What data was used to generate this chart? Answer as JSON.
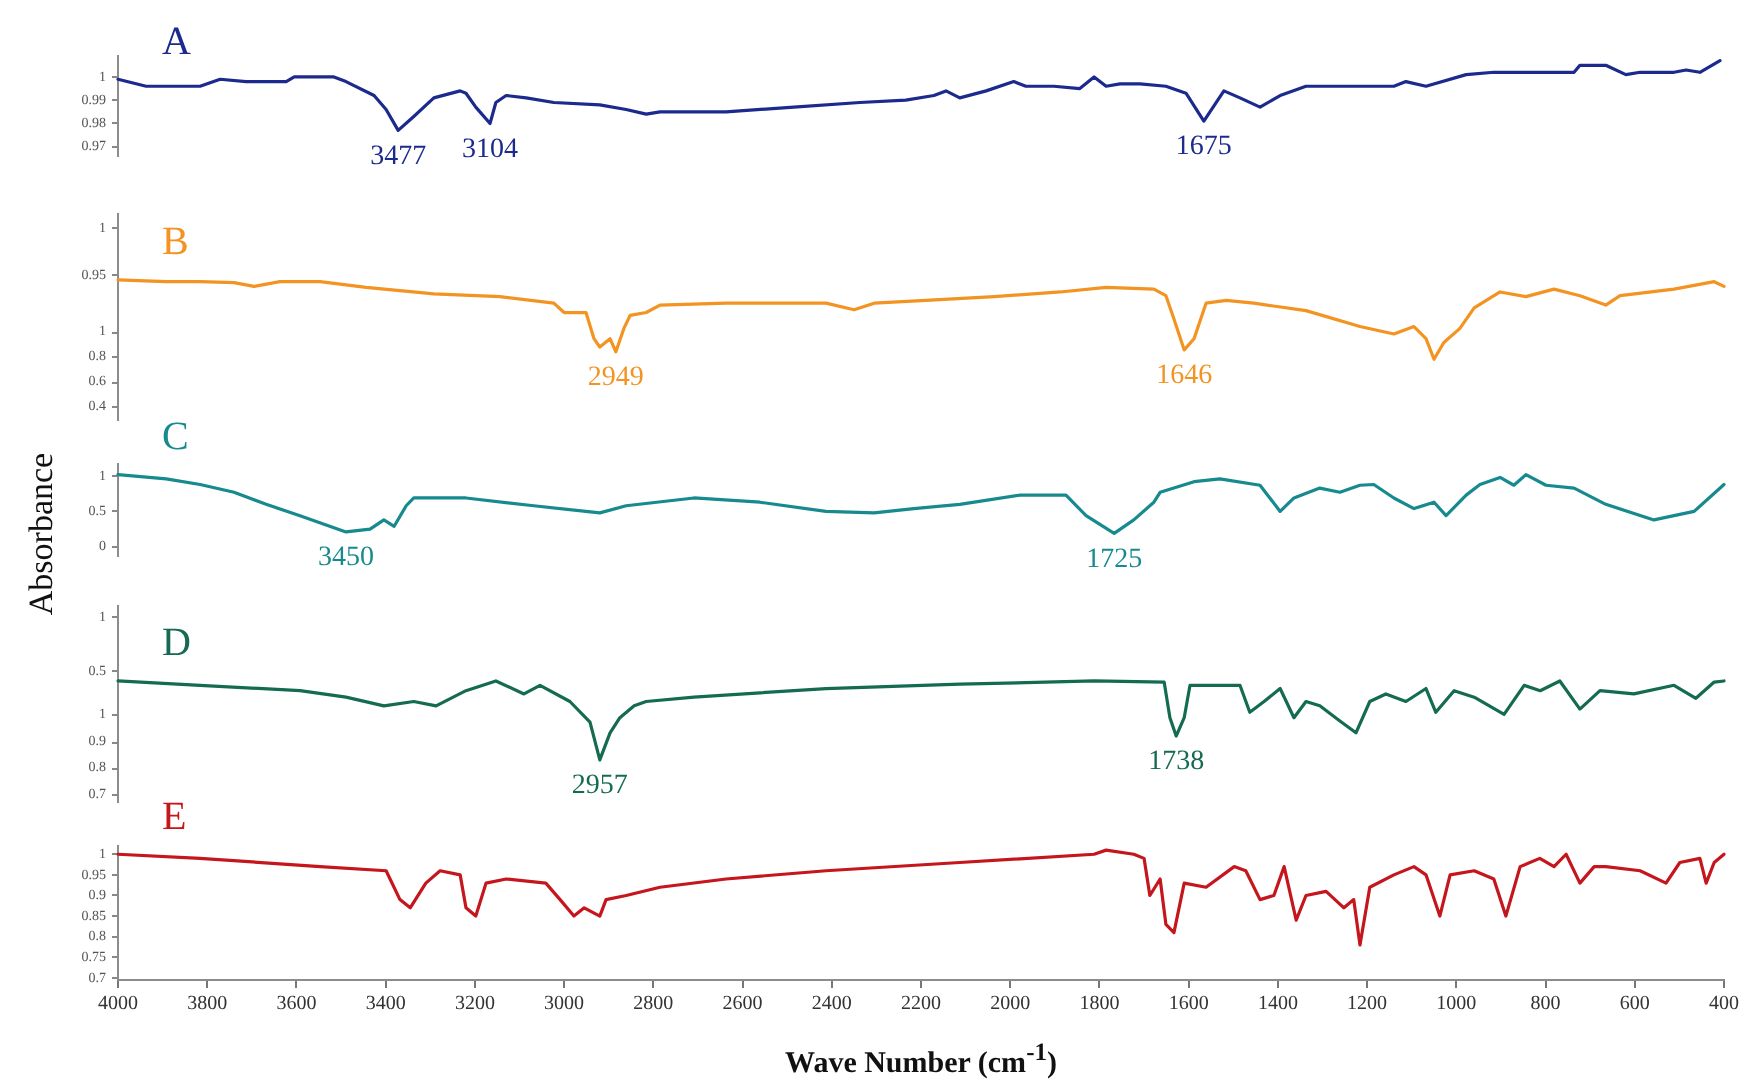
{
  "chart_data": [
    {
      "type": "line",
      "series": [
        {
          "name": "A",
          "color": "#1b2a8c",
          "x": [
            4000,
            3937,
            3874,
            3816,
            3771,
            3713,
            3623,
            3605,
            3516,
            3489,
            3426,
            3399,
            3372,
            3337,
            3292,
            3233,
            3220,
            3198,
            3166,
            3153,
            3130,
            3085,
            3023,
            2920,
            2861,
            2816,
            2785,
            2637,
            2485,
            2337,
            2234,
            2171,
            2144,
            2113,
            2054,
            1992,
            1965,
            1902,
            1844,
            1812,
            1785,
            1754,
            1709,
            1651,
            1606,
            1566,
            1521,
            1485,
            1440,
            1395,
            1337,
            1140,
            1113,
            1068,
            978,
            916,
            736,
            723,
            665,
            620,
            588,
            512,
            485,
            454,
            409
          ],
          "values": [
            0.999,
            0.996,
            0.996,
            0.996,
            0.999,
            0.998,
            0.998,
            1,
            1,
            0.998,
            0.992,
            0.986,
            0.977,
            0.983,
            0.991,
            0.994,
            0.993,
            0.987,
            0.98,
            0.989,
            0.992,
            0.991,
            0.989,
            0.988,
            0.986,
            0.984,
            0.985,
            0.985,
            0.987,
            0.989,
            0.99,
            0.992,
            0.994,
            0.991,
            0.994,
            0.998,
            0.996,
            0.996,
            0.995,
            1,
            0.996,
            0.997,
            0.997,
            0.996,
            0.993,
            0.981,
            0.994,
            0.991,
            0.987,
            0.992,
            0.996,
            0.996,
            0.998,
            0.996,
            1.001,
            1.002,
            1.002,
            1.005,
            1.005,
            1.001,
            1.002,
            1.002,
            1.003,
            1.002,
            1.007
          ]
        }
      ],
      "xlim": [
        4000,
        400
      ],
      "ylim": [
        0.966,
        1.009
      ],
      "yticks": [
        0.97,
        0.98,
        0.99,
        1
      ],
      "tick_labels": "y",
      "annotations": [
        {
          "text": "3477",
          "x": 3372,
          "y": 0.977
        },
        {
          "text": "3104",
          "x": 3166,
          "y": 0.98
        },
        {
          "text": "1675",
          "x": 1566,
          "y": 0.981
        }
      ]
    },
    {
      "type": "line",
      "series": [
        {
          "name": "B",
          "color": "#f39321",
          "x": [
            4000,
            3892,
            3816,
            3740,
            3695,
            3637,
            3547,
            3444,
            3292,
            3144,
            3023,
            3000,
            2951,
            2933,
            2920,
            2897,
            2884,
            2866,
            2852,
            2816,
            2785,
            2637,
            2413,
            2350,
            2305,
            2189,
            2036,
            1888,
            1785,
            1678,
            1651,
            1633,
            1610,
            1588,
            1561,
            1516,
            1454,
            1337,
            1216,
            1140,
            1095,
            1068,
            1050,
            1028,
            992,
            960,
            902,
            844,
            781,
            723,
            665,
            633,
            512,
            422,
            400
          ],
          "values": [
            0.945,
            0.943,
            0.943,
            0.942,
            0.938,
            0.943,
            0.943,
            0.937,
            0.93,
            0.927,
            0.92,
            0.91,
            0.91,
            0.882,
            0.873,
            0.882,
            0.868,
            0.893,
            0.907,
            0.91,
            0.918,
            0.92,
            0.92,
            0.913,
            0.92,
            0.923,
            0.927,
            0.932,
            0.937,
            0.935,
            0.928,
            0.903,
            0.87,
            0.882,
            0.92,
            0.923,
            0.92,
            0.912,
            0.895,
            0.887,
            0.895,
            0.882,
            0.86,
            0.878,
            0.893,
            0.915,
            0.932,
            0.927,
            0.935,
            0.928,
            0.918,
            0.928,
            0.935,
            0.943,
            0.938
          ]
        }
      ],
      "xlim": [
        4000,
        400
      ],
      "ylim": [
        0.795,
        1.015
      ],
      "yticks": [
        0.95,
        1
      ],
      "y2lim": [
        0.29,
        1.94
      ],
      "y2ticks": [
        0.4,
        0.6,
        0.8,
        1
      ],
      "tick_labels": "y",
      "annotations": [
        {
          "text": "2949",
          "x": 2884,
          "y": 0.868
        },
        {
          "text": "1646",
          "x": 1610,
          "y": 0.87
        }
      ]
    },
    {
      "type": "line",
      "series": [
        {
          "name": "C",
          "color": "#168a8e",
          "x": [
            4000,
            3892,
            3816,
            3740,
            3668,
            3592,
            3489,
            3435,
            3404,
            3381,
            3354,
            3337,
            3220,
            3068,
            2920,
            2861,
            2709,
            2561,
            2413,
            2305,
            2216,
            2113,
            1978,
            1875,
            1830,
            1767,
            1723,
            1678,
            1664,
            1588,
            1530,
            1440,
            1395,
            1364,
            1306,
            1261,
            1216,
            1185,
            1140,
            1095,
            1050,
            1023,
            978,
            947,
            902,
            871,
            844,
            799,
            736,
            665,
            557,
            467,
            400
          ],
          "values": [
            1.02,
            0.96,
            0.88,
            0.77,
            0.6,
            0.44,
            0.21,
            0.25,
            0.38,
            0.29,
            0.58,
            0.69,
            0.69,
            0.58,
            0.48,
            0.58,
            0.69,
            0.63,
            0.5,
            0.48,
            0.54,
            0.6,
            0.73,
            0.73,
            0.44,
            0.19,
            0.38,
            0.63,
            0.77,
            0.92,
            0.96,
            0.87,
            0.5,
            0.69,
            0.83,
            0.77,
            0.87,
            0.88,
            0.69,
            0.54,
            0.63,
            0.44,
            0.73,
            0.88,
            0.98,
            0.87,
            1.02,
            0.87,
            0.83,
            0.6,
            0.38,
            0.5,
            0.88
          ]
        }
      ],
      "xlim": [
        4000,
        400
      ],
      "ylim": [
        -0.13,
        1.17
      ],
      "yticks": [
        0,
        0.5,
        1
      ],
      "tick_labels": "y",
      "ylabel": "Absorbance",
      "annotations": [
        {
          "text": "3450",
          "x": 3489,
          "y": 0.21
        },
        {
          "text": "1725",
          "x": 1767,
          "y": 0.19
        }
      ]
    },
    {
      "type": "line",
      "series": [
        {
          "name": "D",
          "color": "#146b52",
          "x": [
            4000,
            3816,
            3592,
            3489,
            3404,
            3337,
            3287,
            3220,
            3153,
            3090,
            3054,
            2987,
            2942,
            2920,
            2897,
            2875,
            2843,
            2816,
            2709,
            2413,
            2113,
            1812,
            1655,
            1642,
            1628,
            1610,
            1597,
            1485,
            1463,
            1431,
            1395,
            1364,
            1337,
            1306,
            1261,
            1225,
            1194,
            1158,
            1113,
            1068,
            1046,
            1005,
            960,
            893,
            848,
            812,
            768,
            723,
            678,
            602,
            512,
            463,
            422,
            400
          ],
          "values": [
            0.41,
            0.37,
            0.32,
            0.26,
            0.18,
            0.22,
            0.18,
            0.32,
            0.41,
            0.29,
            0.37,
            0.22,
            0.03,
            -0.32,
            -0.07,
            0.07,
            0.18,
            0.22,
            0.26,
            0.34,
            0.38,
            0.41,
            0.4,
            0.07,
            -0.1,
            0.07,
            0.37,
            0.37,
            0.12,
            0.22,
            0.34,
            0.07,
            0.22,
            0.18,
            0.04,
            -0.07,
            0.22,
            0.29,
            0.22,
            0.34,
            0.12,
            0.32,
            0.26,
            0.1,
            0.37,
            0.32,
            0.41,
            0.15,
            0.32,
            0.29,
            0.37,
            0.25,
            0.4,
            0.41
          ]
        }
      ],
      "xlim": [
        4000,
        400
      ],
      "ylim": [
        -0.71,
        1.1
      ],
      "yticks": [
        0.5,
        1
      ],
      "y2lim": [
        0.67,
        1.41
      ],
      "y2ticks": [
        0.7,
        0.8,
        0.9,
        1
      ],
      "tick_labels": "y",
      "annotations": [
        {
          "text": "2957",
          "x": 2920,
          "y": -0.32
        },
        {
          "text": "1738",
          "x": 1628,
          "y": -0.1
        }
      ]
    },
    {
      "type": "line",
      "series": [
        {
          "name": "E",
          "color": "#c4161c",
          "x": [
            4000,
            3816,
            3547,
            3399,
            3368,
            3345,
            3310,
            3278,
            3233,
            3220,
            3198,
            3175,
            3130,
            3041,
            3009,
            2978,
            2955,
            2920,
            2906,
            2861,
            2785,
            2637,
            2413,
            2113,
            1812,
            1785,
            1723,
            1700,
            1687,
            1664,
            1651,
            1633,
            1610,
            1561,
            1498,
            1472,
            1440,
            1409,
            1386,
            1359,
            1337,
            1292,
            1252,
            1230,
            1216,
            1194,
            1140,
            1095,
            1068,
            1037,
            1014,
            960,
            916,
            889,
            857,
            813,
            781,
            754,
            723,
            691,
            665,
            588,
            530,
            499,
            454,
            440,
            422,
            400
          ],
          "values": [
            1,
            0.99,
            0.97,
            0.96,
            0.89,
            0.87,
            0.93,
            0.96,
            0.95,
            0.87,
            0.85,
            0.93,
            0.94,
            0.93,
            0.89,
            0.85,
            0.87,
            0.85,
            0.89,
            0.9,
            0.92,
            0.94,
            0.96,
            0.98,
            1,
            1.01,
            1,
            0.99,
            0.9,
            0.94,
            0.83,
            0.81,
            0.93,
            0.92,
            0.97,
            0.96,
            0.89,
            0.9,
            0.97,
            0.84,
            0.9,
            0.91,
            0.87,
            0.89,
            0.78,
            0.92,
            0.95,
            0.97,
            0.95,
            0.85,
            0.95,
            0.96,
            0.94,
            0.85,
            0.97,
            0.99,
            0.97,
            1,
            0.93,
            0.97,
            0.97,
            0.96,
            0.93,
            0.98,
            0.99,
            0.93,
            0.98,
            1
          ]
        }
      ],
      "xlim": [
        4000,
        400
      ],
      "xticks": [
        4000,
        3800,
        3600,
        3400,
        3200,
        3000,
        2800,
        2600,
        2400,
        2200,
        2000,
        1800,
        1600,
        1400,
        1200,
        1000,
        800,
        600,
        400
      ],
      "ylim": [
        0.695,
        1.02
      ],
      "yticks": [
        0.7,
        0.75,
        0.8,
        0.85,
        0.9,
        0.95,
        1
      ],
      "xlabel": "Wave Number (cm$^{-1}$)"
    }
  ]
}
